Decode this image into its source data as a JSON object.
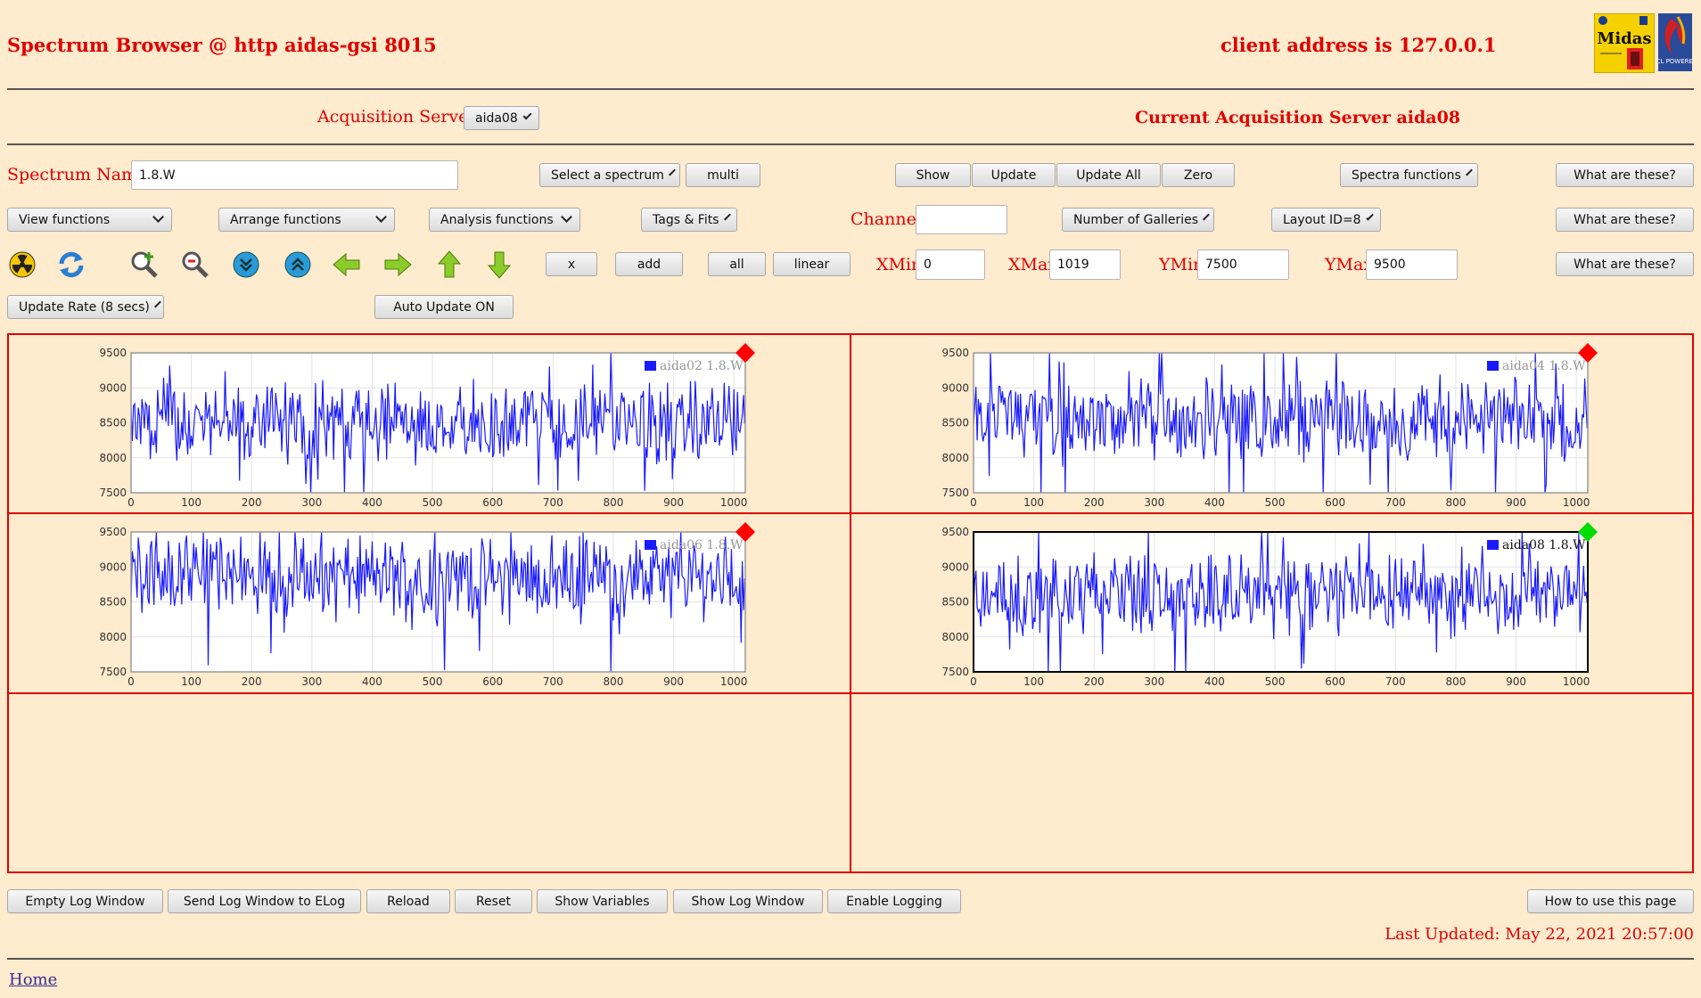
{
  "header": {
    "title": "Spectrum Browser @ http aidas-gsi 8015",
    "client_address": "client address is 127.0.0.1",
    "logos": [
      "Midas",
      "TCL POWERED"
    ]
  },
  "servers": {
    "label": "Acquisition Servers",
    "selected": "aida08",
    "current": "Current Acquisition Server aida08"
  },
  "row1": {
    "spectrum_label": "Spectrum Name:",
    "spectrum_value": "1.8.W",
    "select_spectrum": "Select a spectrum",
    "multi": "multi",
    "show": "Show",
    "update": "Update",
    "update_all": "Update All",
    "zero": "Zero",
    "spectra_functions": "Spectra functions",
    "what": "What are these?"
  },
  "row2": {
    "view_functions": "View functions",
    "arrange_functions": "Arrange functions",
    "analysis_functions": "Analysis functions",
    "tags_fits": "Tags & Fits",
    "channel_label": "Channel:",
    "channel_value": "",
    "galleries": "Number of Galleries",
    "layout": "Layout ID=8",
    "what": "What are these?"
  },
  "row3": {
    "icons": [
      "radiation-icon",
      "refresh-icon",
      "zoom-in-icon",
      "zoom-out-icon",
      "expand-down-icon",
      "expand-up-icon",
      "arrow-left-icon",
      "arrow-right-icon",
      "arrow-up-icon",
      "arrow-down-icon"
    ],
    "x": "x",
    "add": "add",
    "all": "all",
    "linear": "linear",
    "xmin_label": "XMin",
    "xmin_value": "0",
    "xmax_label": "XMax",
    "xmax_value": "1019",
    "ymin_label": "YMin",
    "ymin_value": "7500",
    "ymax_label": "YMax",
    "ymax_value": "9500",
    "what": "What are these?"
  },
  "row4": {
    "update_rate": "Update Rate (8 secs)",
    "auto_update": "Auto Update ON"
  },
  "colors": {
    "background": "#ffebcd",
    "accent": "#e00000",
    "series": "#1a1aff",
    "marker_inactive": "#ff0000",
    "marker_active": "#00dd00"
  },
  "chart_data": [
    {
      "type": "line",
      "legend": "aida02 1.8.W",
      "xlim": [
        0,
        1019
      ],
      "ylim": [
        7500,
        9500
      ],
      "xticks": [
        0,
        100,
        200,
        300,
        400,
        500,
        600,
        700,
        800,
        900,
        1000
      ],
      "yticks": [
        7500,
        8000,
        8500,
        9000,
        9500
      ],
      "grid": true,
      "legend_position": "top-right",
      "marker": "red",
      "active": false,
      "baseline": 8500
    },
    {
      "type": "line",
      "legend": "aida04 1.8.W",
      "xlim": [
        0,
        1019
      ],
      "ylim": [
        7500,
        9500
      ],
      "xticks": [
        0,
        100,
        200,
        300,
        400,
        500,
        600,
        700,
        800,
        900,
        1000
      ],
      "yticks": [
        7500,
        8000,
        8500,
        9000,
        9500
      ],
      "grid": true,
      "legend_position": "top-right",
      "marker": "red",
      "active": false,
      "baseline": 8550
    },
    {
      "type": "line",
      "legend": "aida06 1.8.W",
      "xlim": [
        0,
        1019
      ],
      "ylim": [
        7500,
        9500
      ],
      "xticks": [
        0,
        100,
        200,
        300,
        400,
        500,
        600,
        700,
        800,
        900,
        1000
      ],
      "yticks": [
        7500,
        8000,
        8500,
        9000,
        9500
      ],
      "grid": true,
      "legend_position": "top-right",
      "marker": "red",
      "active": false,
      "baseline": 8850
    },
    {
      "type": "line",
      "legend": "aida08 1.8.W",
      "xlim": [
        0,
        1019
      ],
      "ylim": [
        7500,
        9500
      ],
      "xticks": [
        0,
        100,
        200,
        300,
        400,
        500,
        600,
        700,
        800,
        900,
        1000
      ],
      "yticks": [
        7500,
        8000,
        8500,
        9000,
        9500
      ],
      "grid": true,
      "legend_position": "top-right",
      "marker": "green",
      "active": true,
      "baseline": 8600
    }
  ],
  "footer": {
    "empty_log": "Empty Log Window",
    "send_log": "Send Log Window to ELog",
    "reload": "Reload",
    "reset": "Reset",
    "show_variables": "Show Variables",
    "show_log": "Show Log Window",
    "enable_logging": "Enable Logging",
    "how_to": "How to use this page",
    "last_updated": "Last Updated: May 22, 2021 20:57:00",
    "home": "Home"
  }
}
